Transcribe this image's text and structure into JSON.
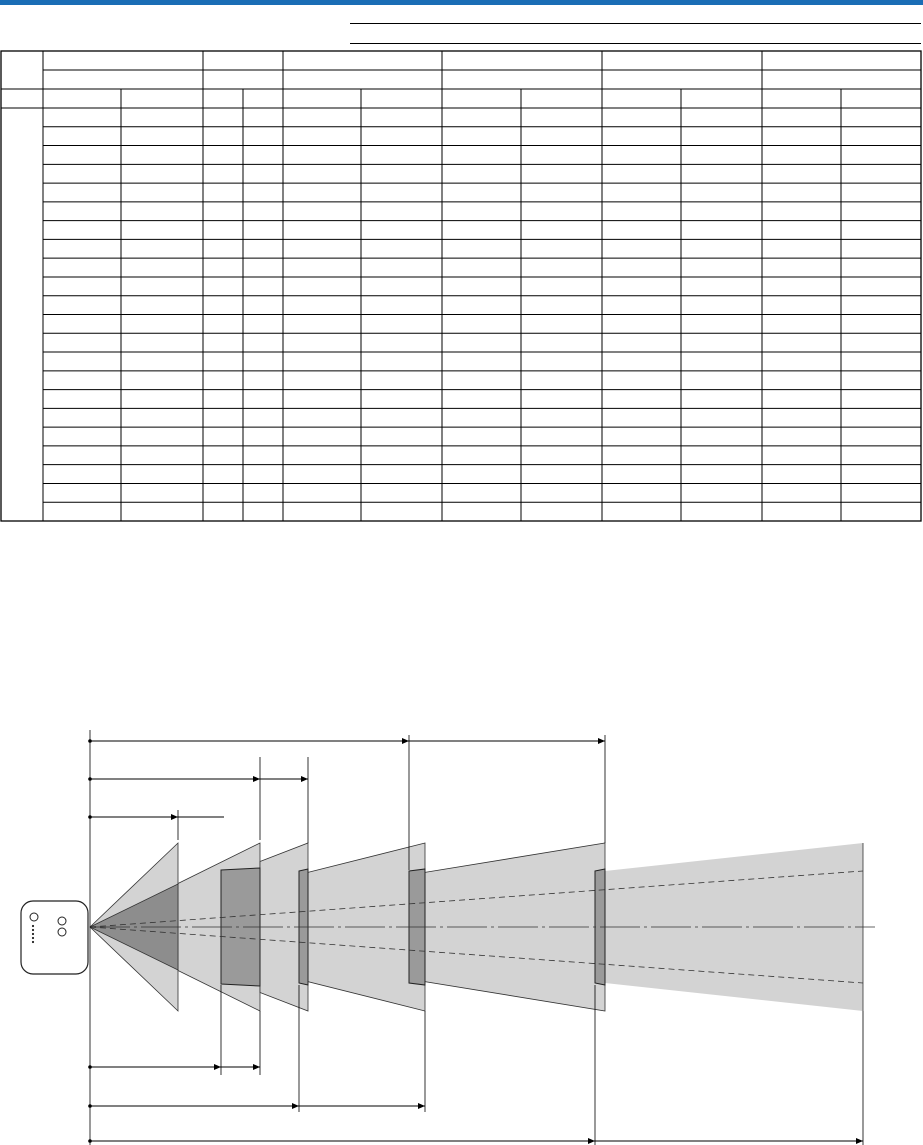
{
  "header": {
    "accent_color": "#1a6db5"
  },
  "table": {
    "body_rows": 22,
    "columns": 13
  },
  "diagram": {
    "projector_icon": "projector-icon",
    "cone_color": "#d3d3d3",
    "screen_color": "#9a9a9a"
  }
}
